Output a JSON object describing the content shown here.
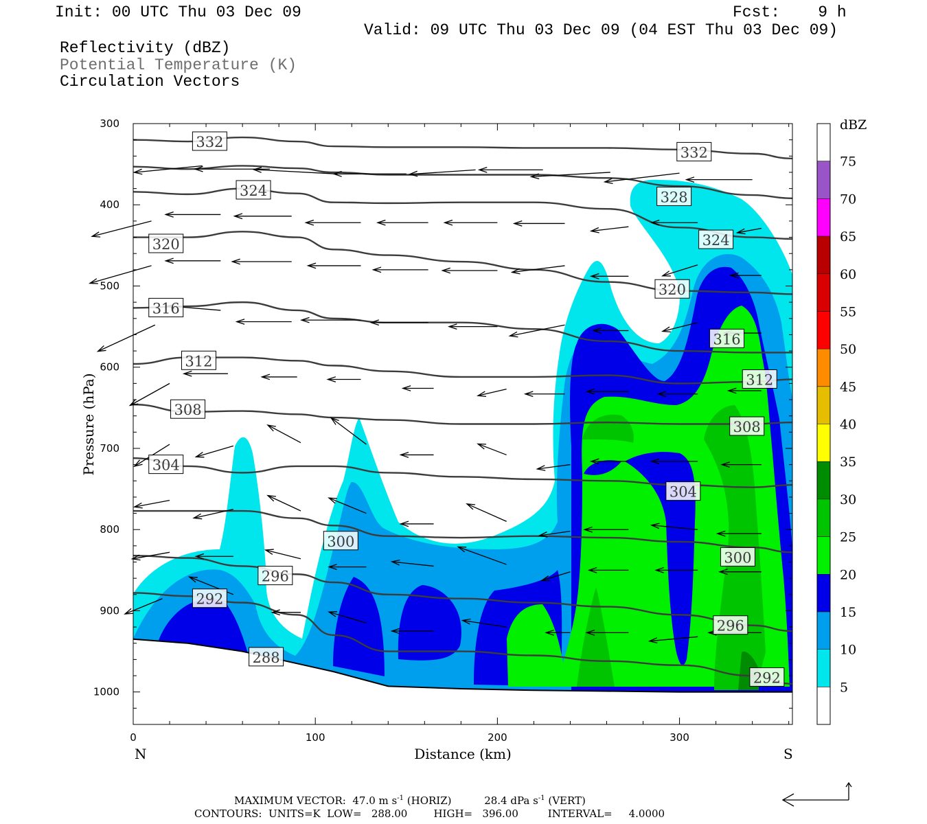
{
  "header": {
    "init": "Init: 00 UTC Thu 03 Dec 09",
    "fcst": "Fcst:    9 h",
    "valid": "Valid: 09 UTC Thu 03 Dec 09 (04 EST Thu 03 Dec 09)",
    "field1": "Reflectivity (dBZ)",
    "field2": "Potential Temperature (K)",
    "field3": "Circulation Vectors"
  },
  "footer": {
    "maxvec_label": "MAXIMUM VECTOR:",
    "horiz": "47.0 m s",
    "horiz_sup": "-1",
    "horiz_tag": "(HORIZ)",
    "vert": "28.4 dPa s",
    "vert_sup": "-1",
    "vert_tag": "(VERT)",
    "contours": "CONTOURS:  UNITS=K  LOW=   288.00        HIGH=   396.00         INTERVAL=     4.0000"
  },
  "chart_data": {
    "type": "cross-section",
    "xlabel": "Distance (km)",
    "ylabel": "Pressure (hPa)",
    "x_ticks": [
      0,
      100,
      200,
      300
    ],
    "y_ticks": [
      300,
      400,
      500,
      600,
      700,
      800,
      900,
      1000
    ],
    "xlim": [
      0,
      362
    ],
    "ylim": [
      300,
      1040
    ],
    "x_end_left": "N",
    "x_end_right": "S",
    "colorbar": {
      "unit": "dBZ",
      "levels": [
        5,
        10,
        15,
        20,
        25,
        30,
        35,
        40,
        45,
        50,
        55,
        60,
        65,
        70,
        75
      ],
      "colors": [
        "#ffffff",
        "#00e6ec",
        "#009fee",
        "#0000e8",
        "#00f000",
        "#00c400",
        "#008c00",
        "#ffff00",
        "#e6be00",
        "#ff8c00",
        "#ff0000",
        "#d80000",
        "#b80000",
        "#ff00ff",
        "#9955c8",
        "#ffffff"
      ]
    },
    "theta_contours": [
      {
        "value": 332,
        "x": [
          0,
          30,
          60,
          90,
          110,
          140,
          180,
          220,
          260,
          300,
          340,
          362
        ],
        "p": [
          320,
          322,
          317,
          322,
          328,
          329,
          329,
          330,
          330,
          332,
          337,
          343
        ]
      },
      {
        "value": 328,
        "x": [
          0,
          30,
          60,
          90,
          110,
          140,
          180,
          220,
          260,
          300,
          340,
          362
        ],
        "p": [
          353,
          356,
          352,
          355,
          360,
          363,
          363,
          363,
          367,
          377,
          388,
          392
        ]
      },
      {
        "value": 324,
        "x": [
          0,
          30,
          60,
          90,
          110,
          140,
          180,
          220,
          260,
          300,
          340,
          362
        ],
        "p": [
          384,
          387,
          380,
          386,
          397,
          398,
          397,
          397,
          405,
          428,
          440,
          442
        ]
      },
      {
        "value": 320,
        "x": [
          0,
          30,
          60,
          90,
          110,
          140,
          180,
          220,
          260,
          300,
          340,
          362
        ],
        "p": [
          440,
          440,
          433,
          440,
          455,
          462,
          470,
          480,
          495,
          506,
          508,
          510
        ]
      },
      {
        "value": 316,
        "x": [
          0,
          30,
          60,
          90,
          110,
          140,
          180,
          220,
          260,
          300,
          340,
          362
        ],
        "p": [
          527,
          525,
          520,
          530,
          540,
          545,
          545,
          553,
          568,
          580,
          582,
          582
        ]
      },
      {
        "value": 312,
        "x": [
          0,
          30,
          60,
          90,
          110,
          140,
          180,
          220,
          260,
          300,
          340,
          362
        ],
        "p": [
          596,
          588,
          588,
          592,
          598,
          605,
          612,
          612,
          610,
          620,
          618,
          615
        ]
      },
      {
        "value": 308,
        "x": [
          0,
          30,
          60,
          90,
          110,
          140,
          180,
          220,
          260,
          300,
          340,
          362
        ],
        "p": [
          646,
          655,
          654,
          658,
          662,
          665,
          670,
          670,
          668,
          670,
          670,
          668
        ]
      },
      {
        "value": 304,
        "x": [
          0,
          30,
          60,
          90,
          110,
          140,
          180,
          220,
          260,
          300,
          340,
          362
        ],
        "p": [
          712,
          722,
          730,
          722,
          722,
          730,
          735,
          738,
          740,
          745,
          748,
          745
        ]
      },
      {
        "value": 300,
        "x": [
          0,
          30,
          60,
          90,
          110,
          140,
          180,
          220,
          260,
          300,
          340,
          362
        ],
        "p": [
          777,
          777,
          777,
          786,
          795,
          808,
          810,
          808,
          810,
          815,
          822,
          828
        ]
      },
      {
        "value": 296,
        "x": [
          0,
          30,
          60,
          90,
          110,
          140,
          180,
          220,
          260,
          300,
          340,
          362
        ],
        "p": [
          832,
          835,
          845,
          855,
          865,
          880,
          885,
          890,
          895,
          905,
          918,
          925
        ]
      },
      {
        "value": 292,
        "x": [
          0,
          30,
          60,
          90,
          110,
          140,
          180,
          220,
          260,
          300,
          340,
          362
        ],
        "p": [
          878,
          882,
          890,
          905,
          930,
          950,
          950,
          955,
          962,
          967,
          980,
          990
        ]
      },
      {
        "value": 288,
        "x": [
          0,
          30,
          60,
          90,
          110,
          140,
          180,
          220,
          260,
          300,
          340,
          362
        ],
        "p": [
          935,
          940,
          950,
          965,
          975,
          993,
          996,
          998,
          999,
          1000,
          1000,
          1000
        ]
      }
    ],
    "contour_labels": [
      {
        "value": "332",
        "x": 42,
        "p": 322
      },
      {
        "value": "332",
        "x": 308,
        "p": 335
      },
      {
        "value": "324",
        "x": 66,
        "p": 382
      },
      {
        "value": "328",
        "x": 297,
        "p": 390
      },
      {
        "value": "320",
        "x": 18,
        "p": 448
      },
      {
        "value": "324",
        "x": 320,
        "p": 443
      },
      {
        "value": "320",
        "x": 296,
        "p": 504
      },
      {
        "value": "316",
        "x": 18,
        "p": 527
      },
      {
        "value": "316",
        "x": 326,
        "p": 565
      },
      {
        "value": "312",
        "x": 36,
        "p": 592
      },
      {
        "value": "312",
        "x": 344,
        "p": 615
      },
      {
        "value": "308",
        "x": 30,
        "p": 652
      },
      {
        "value": "308",
        "x": 337,
        "p": 673
      },
      {
        "value": "304",
        "x": 18,
        "p": 720
      },
      {
        "value": "304",
        "x": 302,
        "p": 753
      },
      {
        "value": "300",
        "x": 114,
        "p": 814
      },
      {
        "value": "300",
        "x": 332,
        "p": 834
      },
      {
        "value": "296",
        "x": 78,
        "p": 857
      },
      {
        "value": "296",
        "x": 328,
        "p": 918
      },
      {
        "value": "292",
        "x": 42,
        "p": 885
      },
      {
        "value": "292",
        "x": 348,
        "p": 982
      },
      {
        "value": "288",
        "x": 73,
        "p": 957
      }
    ],
    "vectors": [
      {
        "x": 38,
        "p": 352,
        "u": -31,
        "v": 3
      },
      {
        "x": 75,
        "p": 356,
        "u": -34,
        "v": 0
      },
      {
        "x": 112,
        "p": 362,
        "u": -38,
        "v": -2
      },
      {
        "x": 150,
        "p": 362,
        "u": -33,
        "v": 0
      },
      {
        "x": 188,
        "p": 357,
        "u": -30,
        "v": 2
      },
      {
        "x": 225,
        "p": 357,
        "u": -29,
        "v": 0
      },
      {
        "x": 262,
        "p": 360,
        "u": -36,
        "v": 2
      },
      {
        "x": 300,
        "p": 361,
        "u": -34,
        "v": 4
      },
      {
        "x": 340,
        "p": 369,
        "u": -30,
        "v": 0
      },
      {
        "x": 10,
        "p": 420,
        "u": -27,
        "v": 7
      },
      {
        "x": 48,
        "p": 412,
        "u": -25,
        "v": 0
      },
      {
        "x": 87,
        "p": 414,
        "u": -26,
        "v": 0
      },
      {
        "x": 125,
        "p": 422,
        "u": -25,
        "v": 0
      },
      {
        "x": 162,
        "p": 422,
        "u": -23,
        "v": 0
      },
      {
        "x": 200,
        "p": 422,
        "u": -24,
        "v": 0
      },
      {
        "x": 237,
        "p": 423,
        "u": -23,
        "v": 0
      },
      {
        "x": 272,
        "p": 427,
        "u": -17,
        "v": 2
      },
      {
        "x": 310,
        "p": 422,
        "u": -21,
        "v": 0
      },
      {
        "x": 345,
        "p": 429,
        "u": -11,
        "v": 2
      },
      {
        "x": 10,
        "p": 475,
        "u": -28,
        "v": 8
      },
      {
        "x": 48,
        "p": 469,
        "u": -25,
        "v": 0
      },
      {
        "x": 87,
        "p": 470,
        "u": -27,
        "v": 0
      },
      {
        "x": 125,
        "p": 475,
        "u": -24,
        "v": 0
      },
      {
        "x": 162,
        "p": 480,
        "u": -25,
        "v": 0
      },
      {
        "x": 200,
        "p": 481,
        "u": -25,
        "v": 0
      },
      {
        "x": 237,
        "p": 475,
        "u": -24,
        "v": 3
      },
      {
        "x": 272,
        "p": 488,
        "u": -17,
        "v": 0
      },
      {
        "x": 310,
        "p": 474,
        "u": -16,
        "v": 5
      },
      {
        "x": 345,
        "p": 487,
        "u": -14,
        "v": 0
      },
      {
        "x": 12,
        "p": 548,
        "u": -26,
        "v": 12
      },
      {
        "x": 48,
        "p": 530,
        "u": -24,
        "v": -2
      },
      {
        "x": 87,
        "p": 544,
        "u": -25,
        "v": 0
      },
      {
        "x": 125,
        "p": 542,
        "u": -27,
        "v": 0
      },
      {
        "x": 162,
        "p": 545,
        "u": -26,
        "v": 0
      },
      {
        "x": 200,
        "p": 550,
        "u": -22,
        "v": 0
      },
      {
        "x": 237,
        "p": 548,
        "u": -25,
        "v": 5
      },
      {
        "x": 272,
        "p": 555,
        "u": -16,
        "v": 0
      },
      {
        "x": 310,
        "p": 545,
        "u": -16,
        "v": 4
      },
      {
        "x": 345,
        "p": 558,
        "u": -17,
        "v": 0
      },
      {
        "x": 20,
        "p": 620,
        "u": -18,
        "v": 10
      },
      {
        "x": 52,
        "p": 608,
        "u": -20,
        "v": 0
      },
      {
        "x": 90,
        "p": 612,
        "u": -16,
        "v": 0
      },
      {
        "x": 125,
        "p": 615,
        "u": -15,
        "v": 0
      },
      {
        "x": 165,
        "p": 626,
        "u": -14,
        "v": 0
      },
      {
        "x": 205,
        "p": 627,
        "u": -13,
        "v": 3
      },
      {
        "x": 237,
        "p": 633,
        "u": -18,
        "v": 0
      },
      {
        "x": 272,
        "p": 630,
        "u": -19,
        "v": 0
      },
      {
        "x": 310,
        "p": 633,
        "u": -18,
        "v": 0
      },
      {
        "x": 345,
        "p": 629,
        "u": -15,
        "v": 0
      },
      {
        "x": 20,
        "p": 695,
        "u": -16,
        "v": 10
      },
      {
        "x": 55,
        "p": 697,
        "u": -17,
        "v": 5
      },
      {
        "x": 92,
        "p": 693,
        "u": -15,
        "v": -8
      },
      {
        "x": 128,
        "p": 695,
        "u": -16,
        "v": -12
      },
      {
        "x": 165,
        "p": 708,
        "u": -15,
        "v": 0
      },
      {
        "x": 205,
        "p": 708,
        "u": -13,
        "v": -5
      },
      {
        "x": 240,
        "p": 720,
        "u": -15,
        "v": 2
      },
      {
        "x": 272,
        "p": 716,
        "u": -17,
        "v": 0
      },
      {
        "x": 310,
        "p": 716,
        "u": -21,
        "v": 0
      },
      {
        "x": 345,
        "p": 720,
        "u": -18,
        "v": 0
      },
      {
        "x": 20,
        "p": 764,
        "u": -16,
        "v": 3
      },
      {
        "x": 55,
        "p": 775,
        "u": -18,
        "v": 4
      },
      {
        "x": 92,
        "p": 777,
        "u": -15,
        "v": -7
      },
      {
        "x": 128,
        "p": 780,
        "u": -17,
        "v": -7
      },
      {
        "x": 165,
        "p": 793,
        "u": -15,
        "v": 0
      },
      {
        "x": 205,
        "p": 790,
        "u": -18,
        "v": -8
      },
      {
        "x": 240,
        "p": 802,
        "u": -14,
        "v": 2
      },
      {
        "x": 272,
        "p": 800,
        "u": -20,
        "v": 0
      },
      {
        "x": 310,
        "p": 800,
        "u": -21,
        "v": -2
      },
      {
        "x": 345,
        "p": 805,
        "u": -20,
        "v": 0
      },
      {
        "x": 20,
        "p": 828,
        "u": -17,
        "v": 3
      },
      {
        "x": 55,
        "p": 833,
        "u": -17,
        "v": 0
      },
      {
        "x": 92,
        "p": 836,
        "u": -16,
        "v": -4
      },
      {
        "x": 128,
        "p": 846,
        "u": -17,
        "v": 0
      },
      {
        "x": 165,
        "p": 845,
        "u": -19,
        "v": -2
      },
      {
        "x": 205,
        "p": 843,
        "u": -22,
        "v": -8
      },
      {
        "x": 240,
        "p": 852,
        "u": -13,
        "v": 4
      },
      {
        "x": 272,
        "p": 850,
        "u": -18,
        "v": 0
      },
      {
        "x": 310,
        "p": 850,
        "u": -19,
        "v": 0
      },
      {
        "x": 345,
        "p": 852,
        "u": -19,
        "v": 0
      },
      {
        "x": 16,
        "p": 885,
        "u": -17,
        "v": 7
      },
      {
        "x": 55,
        "p": 880,
        "u": -20,
        "v": -8
      },
      {
        "x": 92,
        "p": 902,
        "u": -13,
        "v": 0
      },
      {
        "x": 128,
        "p": 915,
        "u": -17,
        "v": -5
      },
      {
        "x": 165,
        "p": 925,
        "u": -19,
        "v": 0
      },
      {
        "x": 205,
        "p": 920,
        "u": -20,
        "v": -3
      },
      {
        "x": 240,
        "p": 927,
        "u": -11,
        "v": 0
      },
      {
        "x": 272,
        "p": 927,
        "u": -19,
        "v": 0
      },
      {
        "x": 310,
        "p": 932,
        "u": -22,
        "v": 2
      },
      {
        "x": 345,
        "p": 927,
        "u": -24,
        "v": 0
      }
    ],
    "vector_scale": {
      "horiz": 47.0,
      "vert": 28.4
    }
  }
}
